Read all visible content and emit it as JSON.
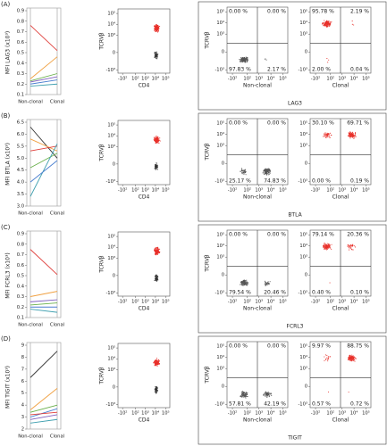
{
  "chart_data": [
    {
      "type": "line",
      "panel": "(A)",
      "ylabel": "MFI LAG3 (x10³)",
      "categories": [
        "Non-clonal",
        "Clonal"
      ],
      "ylim": [
        0.1,
        0.9
      ],
      "yticks": [
        0.1,
        0.2,
        0.3,
        0.4,
        0.5,
        0.6,
        0.7,
        0.8,
        0.9
      ],
      "series": [
        {
          "color": "#e0403c",
          "values": [
            0.76,
            0.52
          ]
        },
        {
          "color": "#f0a040",
          "values": [
            0.25,
            0.46
          ]
        },
        {
          "color": "#6ab04c",
          "values": [
            0.23,
            0.3
          ]
        },
        {
          "color": "#8060c0",
          "values": [
            0.22,
            0.27
          ]
        },
        {
          "color": "#4a7fd0",
          "values": [
            0.2,
            0.24
          ]
        },
        {
          "color": "#40a0b0",
          "values": [
            0.18,
            0.2
          ]
        }
      ]
    },
    {
      "type": "flow",
      "xlabel": "CD4",
      "ylabel": "TCRVβ",
      "xlim": [
        -300,
        262144
      ],
      "ylim": [
        -2000,
        262144
      ],
      "xticks": [
        {
          "value": -100,
          "label": "-10²"
        },
        {
          "value": 100,
          "label": "10²"
        },
        {
          "value": 1000,
          "label": "10³"
        },
        {
          "value": 10000,
          "label": "10⁴"
        },
        {
          "value": 100000,
          "label": "10⁵"
        }
      ],
      "yticks": [
        {
          "value": -1000,
          "label": "-10³"
        },
        0,
        {
          "value": 1000,
          "label": "10³"
        },
        {
          "value": 10000,
          "label": "10⁴"
        },
        {
          "value": 100000,
          "label": "10⁵"
        }
      ]
    },
    {
      "type": "quadrant",
      "xlabel": "LAG3",
      "ylabel": "TCRVβ",
      "xlim": [
        -300,
        262144
      ],
      "ylim": [
        -2000,
        262144
      ],
      "xticks": [
        {
          "value": -100,
          "label": "-10²"
        },
        {
          "value": 100,
          "label": "10²"
        },
        {
          "value": 1000,
          "label": "10³"
        },
        {
          "value": 10000,
          "label": "10⁴"
        },
        {
          "value": 100000,
          "label": "10⁵"
        }
      ],
      "yticks": [
        {
          "value": -1000,
          "label": "-10³"
        },
        0,
        {
          "value": 1000,
          "label": "10³"
        },
        {
          "value": 10000,
          "label": "10⁴"
        },
        {
          "value": 100000,
          "label": "10⁵"
        }
      ],
      "panels": [
        {
          "xlabel": "Non-clonal",
          "color": "#555555",
          "values": [
            0,
            0,
            97.83,
            2.17
          ],
          "value_labels": [
            "0.00 %",
            "0.00 %",
            "97.83 %",
            "2.17 %"
          ]
        },
        {
          "xlabel": "Clonal",
          "color": "#e8302a",
          "values": [
            95.78,
            2.19,
            2.0,
            0.04
          ],
          "value_labels": [
            "95.78 %",
            "2.19 %",
            "2.00 %",
            "0.04 %"
          ]
        }
      ]
    },
    {
      "type": "line",
      "panel": "(B)",
      "ylabel": "MFI BTLA (x10³)",
      "categories": [
        "Non-clonal",
        "Clonal"
      ],
      "ylim": [
        3,
        6.5
      ],
      "yticks": [
        {
          "value": 3,
          "label": "3.0"
        },
        3.5,
        {
          "value": 4,
          "label": "4.0"
        },
        4.5,
        {
          "value": 5,
          "label": "5.0"
        },
        5.5,
        {
          "value": 6,
          "label": "6.0"
        },
        6.5
      ],
      "series": [
        {
          "color": "#333333",
          "values": [
            6.3,
            5.0
          ]
        },
        {
          "color": "#f0a040",
          "values": [
            5.8,
            5.3
          ]
        },
        {
          "color": "#e0403c",
          "values": [
            5.3,
            5.5
          ]
        },
        {
          "color": "#6ab04c",
          "values": [
            4.6,
            5.2
          ]
        },
        {
          "color": "#40a0b0",
          "values": [
            3.4,
            5.6
          ]
        },
        {
          "color": "#4a7fd0",
          "values": [
            4.0,
            4.9
          ]
        }
      ]
    },
    {
      "type": "flow",
      "xlabel": "CD4",
      "ylabel": "TCRVβ",
      "xlim": [
        -300,
        262144
      ],
      "ylim": [
        -2000,
        262144
      ],
      "xticks": [
        {
          "value": -100,
          "label": "-10²"
        },
        {
          "value": 100,
          "label": "10²"
        },
        {
          "value": 1000,
          "label": "10³"
        },
        {
          "value": 10000,
          "label": "10⁴"
        },
        {
          "value": 100000,
          "label": "10⁵"
        }
      ],
      "yticks": [
        {
          "value": -1000,
          "label": "-10³"
        },
        0,
        {
          "value": 1000,
          "label": "10³"
        },
        {
          "value": 10000,
          "label": "10⁴"
        },
        {
          "value": 100000,
          "label": "10⁵"
        }
      ]
    },
    {
      "type": "quadrant",
      "xlabel": "BTLA",
      "ylabel": "TCRVβ",
      "xlim": [
        -300,
        262144
      ],
      "ylim": [
        -2000,
        262144
      ],
      "xticks": [
        {
          "value": -100,
          "label": "-10²"
        },
        {
          "value": 100,
          "label": "10²"
        },
        {
          "value": 1000,
          "label": "10³"
        },
        {
          "value": 10000,
          "label": "10⁴"
        },
        {
          "value": 100000,
          "label": "10⁵"
        }
      ],
      "yticks": [
        {
          "value": -1000,
          "label": "-10³"
        },
        0,
        {
          "value": 1000,
          "label": "10³"
        },
        {
          "value": 10000,
          "label": "10⁴"
        },
        {
          "value": 100000,
          "label": "10⁵"
        }
      ],
      "panels": [
        {
          "xlabel": "Non-clonal",
          "color": "#555555",
          "values": [
            0,
            0,
            25.17,
            74.83
          ],
          "value_labels": [
            "0.00 %",
            "0.00 %",
            "25.17 %",
            "74.83 %"
          ]
        },
        {
          "xlabel": "Clonal",
          "color": "#e8302a",
          "values": [
            30.1,
            69.71,
            0,
            0.19
          ],
          "value_labels": [
            "30.10 %",
            "69.71 %",
            "0.00 %",
            "0.19 %"
          ]
        }
      ]
    },
    {
      "type": "line",
      "panel": "(C)",
      "ylabel": "MFI FCRL3 (x10³)",
      "categories": [
        "Non-clonal",
        "Clonal"
      ],
      "ylim": [
        0.1,
        0.9
      ],
      "yticks": [
        0.1,
        0.2,
        0.3,
        0.4,
        0.5,
        0.6,
        0.7,
        0.8,
        0.9
      ],
      "series": [
        {
          "color": "#e0403c",
          "values": [
            0.75,
            0.51
          ]
        },
        {
          "color": "#f0a040",
          "values": [
            0.3,
            0.35
          ]
        },
        {
          "color": "#8060c0",
          "values": [
            0.25,
            0.27
          ]
        },
        {
          "color": "#6ab04c",
          "values": [
            0.22,
            0.24
          ]
        },
        {
          "color": "#4a7fd0",
          "values": [
            0.2,
            0.2
          ]
        },
        {
          "color": "#40a0b0",
          "values": [
            0.18,
            0.15
          ]
        }
      ]
    },
    {
      "type": "flow",
      "xlabel": "CD4",
      "ylabel": "TCRVβ",
      "xlim": [
        -300,
        262144
      ],
      "ylim": [
        -2000,
        262144
      ],
      "xticks": [
        {
          "value": -100,
          "label": "-10²"
        },
        {
          "value": 100,
          "label": "10²"
        },
        {
          "value": 1000,
          "label": "10³"
        },
        {
          "value": 10000,
          "label": "10⁴"
        },
        {
          "value": 100000,
          "label": "10⁵"
        }
      ],
      "yticks": [
        {
          "value": -1000,
          "label": "-10³"
        },
        0,
        {
          "value": 1000,
          "label": "10³"
        },
        {
          "value": 10000,
          "label": "10⁴"
        },
        {
          "value": 100000,
          "label": "10⁵"
        }
      ]
    },
    {
      "type": "quadrant",
      "xlabel": "FCRL3",
      "ylabel": "TCRVβ",
      "xlim": [
        -300,
        262144
      ],
      "ylim": [
        -2000,
        262144
      ],
      "xticks": [
        {
          "value": -100,
          "label": "-10²"
        },
        {
          "value": 100,
          "label": "10²"
        },
        {
          "value": 1000,
          "label": "10³"
        },
        {
          "value": 10000,
          "label": "10⁴"
        },
        {
          "value": 100000,
          "label": "10⁵"
        }
      ],
      "yticks": [
        {
          "value": -1000,
          "label": "-10³"
        },
        0,
        {
          "value": 1000,
          "label": "10³"
        },
        {
          "value": 10000,
          "label": "10⁴"
        },
        {
          "value": 100000,
          "label": "10⁵"
        }
      ],
      "panels": [
        {
          "xlabel": "Non-clonal",
          "color": "#555555",
          "values": [
            0,
            0,
            79.54,
            20.46
          ],
          "value_labels": [
            "0.00 %",
            "0.00 %",
            "79.54 %",
            "20.46 %"
          ]
        },
        {
          "xlabel": "Clonal",
          "color": "#e8302a",
          "values": [
            79.14,
            20.36,
            0.4,
            0.1
          ],
          "value_labels": [
            "79.14 %",
            "20.36 %",
            "0.40 %",
            "0.10 %"
          ]
        }
      ]
    },
    {
      "type": "line",
      "panel": "(D)",
      "ylabel": "MFI TIGIT (x10³)",
      "categories": [
        "Non-clonal",
        "Clonal"
      ],
      "ylim": [
        2,
        9
      ],
      "yticks": [
        2,
        3,
        4,
        5,
        6,
        7,
        8,
        9
      ],
      "series": [
        {
          "color": "#333333",
          "values": [
            6.3,
            8.5
          ]
        },
        {
          "color": "#f0a040",
          "values": [
            3.6,
            5.4
          ]
        },
        {
          "color": "#6ab04c",
          "values": [
            3.4,
            4.0
          ]
        },
        {
          "color": "#4a7fd0",
          "values": [
            3.0,
            3.7
          ]
        },
        {
          "color": "#e0403c",
          "values": [
            3.2,
            3.4
          ]
        },
        {
          "color": "#8060c0",
          "values": [
            2.8,
            3.2
          ]
        },
        {
          "color": "#40a0b0",
          "values": [
            2.5,
            2.8
          ]
        }
      ]
    },
    {
      "type": "flow",
      "xlabel": "CD4",
      "ylabel": "TCRVβ",
      "xlim": [
        -300,
        262144
      ],
      "ylim": [
        -2000,
        262144
      ],
      "xticks": [
        {
          "value": -100,
          "label": "-10²"
        },
        {
          "value": 100,
          "label": "10²"
        },
        {
          "value": 1000,
          "label": "10³"
        },
        {
          "value": 10000,
          "label": "10⁴"
        },
        {
          "value": 100000,
          "label": "10⁵"
        }
      ],
      "yticks": [
        {
          "value": -1000,
          "label": "-10³"
        },
        0,
        {
          "value": 1000,
          "label": "10³"
        },
        {
          "value": 10000,
          "label": "10⁴"
        },
        {
          "value": 100000,
          "label": "10⁵"
        }
      ]
    },
    {
      "type": "quadrant",
      "xlabel": "TIGIT",
      "ylabel": "TCRVβ",
      "xlim": [
        -300,
        262144
      ],
      "ylim": [
        -2000,
        262144
      ],
      "xticks": [
        {
          "value": -100,
          "label": "-10²"
        },
        {
          "value": 100,
          "label": "10²"
        },
        {
          "value": 1000,
          "label": "10³"
        },
        {
          "value": 10000,
          "label": "10⁴"
        },
        {
          "value": 100000,
          "label": "10⁵"
        }
      ],
      "yticks": [
        {
          "value": -1000,
          "label": "-10³"
        },
        0,
        {
          "value": 1000,
          "label": "10³"
        },
        {
          "value": 10000,
          "label": "10⁴"
        },
        {
          "value": 100000,
          "label": "10⁵"
        }
      ],
      "panels": [
        {
          "xlabel": "Non-clonal",
          "color": "#555555",
          "values": [
            0,
            0,
            57.81,
            42.19
          ],
          "value_labels": [
            "0.00 %",
            "0.00 %",
            "57.81 %",
            "42.19 %"
          ]
        },
        {
          "xlabel": "Clonal",
          "color": "#e8302a",
          "values": [
            9.97,
            88.75,
            0.57,
            0.72
          ],
          "value_labels": [
            "9.97 %",
            "88.75 %",
            "0.57 %",
            "0.72 %"
          ]
        }
      ]
    }
  ]
}
